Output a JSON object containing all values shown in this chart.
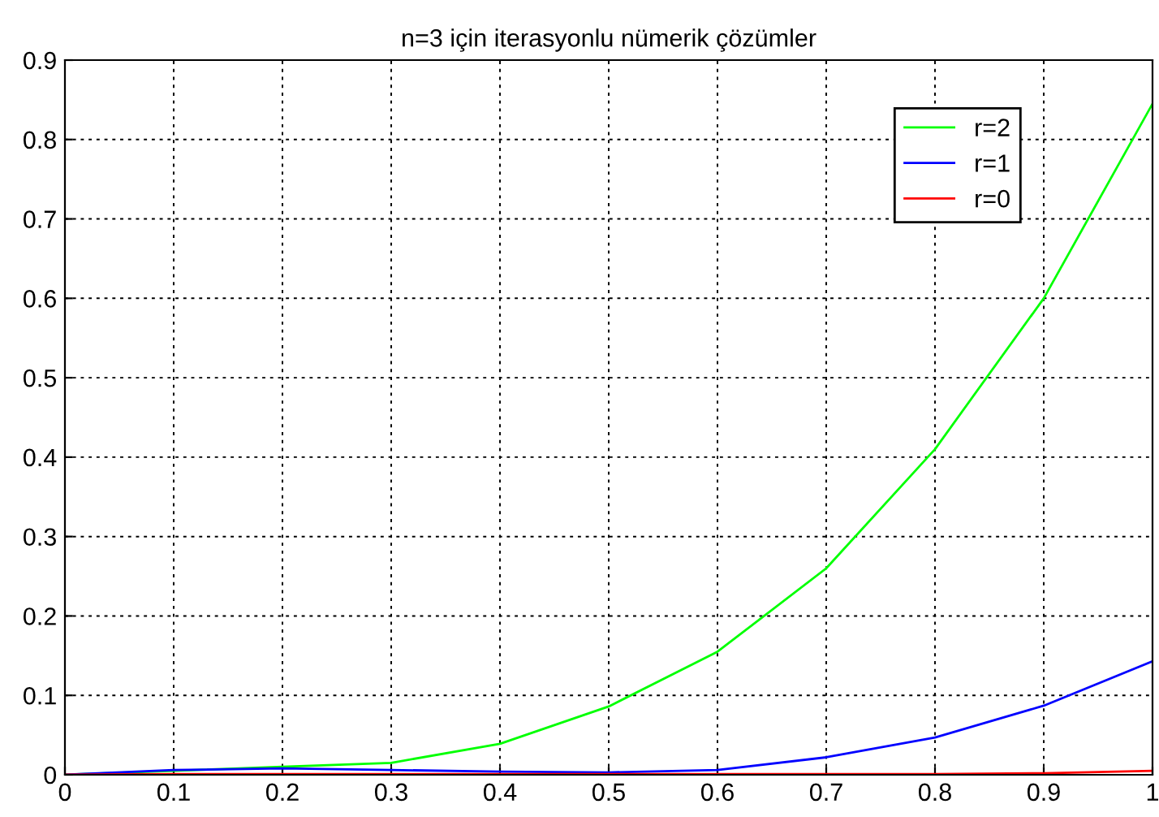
{
  "chart_data": {
    "type": "line",
    "title": "n=3 için iterasyonlu nümerik çözümler",
    "x": [
      0,
      0.1,
      0.2,
      0.3,
      0.4,
      0.5,
      0.6,
      0.7,
      0.8,
      0.9,
      1.0
    ],
    "series": [
      {
        "name": "r=2",
        "color": "#00ff00",
        "values": [
          0,
          0.005,
          0.01,
          0.015,
          0.039,
          0.086,
          0.155,
          0.26,
          0.41,
          0.6,
          0.845
        ]
      },
      {
        "name": "r=1",
        "color": "#0000ff",
        "values": [
          0,
          0.006,
          0.008,
          0.006,
          0.004,
          0.003,
          0.006,
          0.022,
          0.047,
          0.087,
          0.143
        ]
      },
      {
        "name": "r=0",
        "color": "#ff0000",
        "values": [
          0,
          0.001,
          0.001,
          0.001,
          0.001,
          0.001,
          0.001,
          0.001,
          0.001,
          0.002,
          0.005
        ]
      }
    ],
    "xlim": [
      0,
      1
    ],
    "xticks": [
      0,
      0.1,
      0.2,
      0.3,
      0.4,
      0.5,
      0.6,
      0.7,
      0.8,
      0.9,
      1
    ],
    "ylim": [
      0,
      0.9
    ],
    "yticks": [
      0,
      0.1,
      0.2,
      0.3,
      0.4,
      0.5,
      0.6,
      0.7,
      0.8,
      0.9
    ],
    "grid": true,
    "legend": "top right",
    "line_style": "solid",
    "marker": "none"
  }
}
